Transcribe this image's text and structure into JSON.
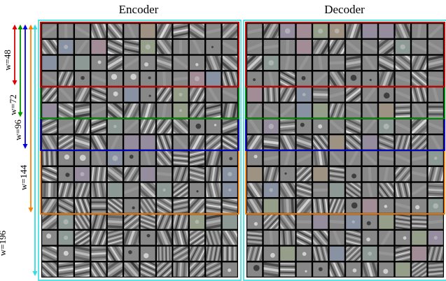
{
  "titles": {
    "encoder": "Encoder",
    "decoder": "Decoder"
  },
  "width_groups": [
    {
      "label": "w=48",
      "rows": 4,
      "color": "#e00000"
    },
    {
      "label": "w=72",
      "rows": 6,
      "color": "#009900"
    },
    {
      "label": "w=96",
      "rows": 8,
      "color": "#0000dd"
    },
    {
      "label": "w=144",
      "rows": 12,
      "color": "#ff8000"
    },
    {
      "label": "w=196",
      "rows": 16,
      "color": "#33dddd"
    }
  ],
  "grid": {
    "rows": 16,
    "cols": 12
  },
  "colors": {
    "tile_bg": "#888888",
    "grid_line": "#000000"
  }
}
